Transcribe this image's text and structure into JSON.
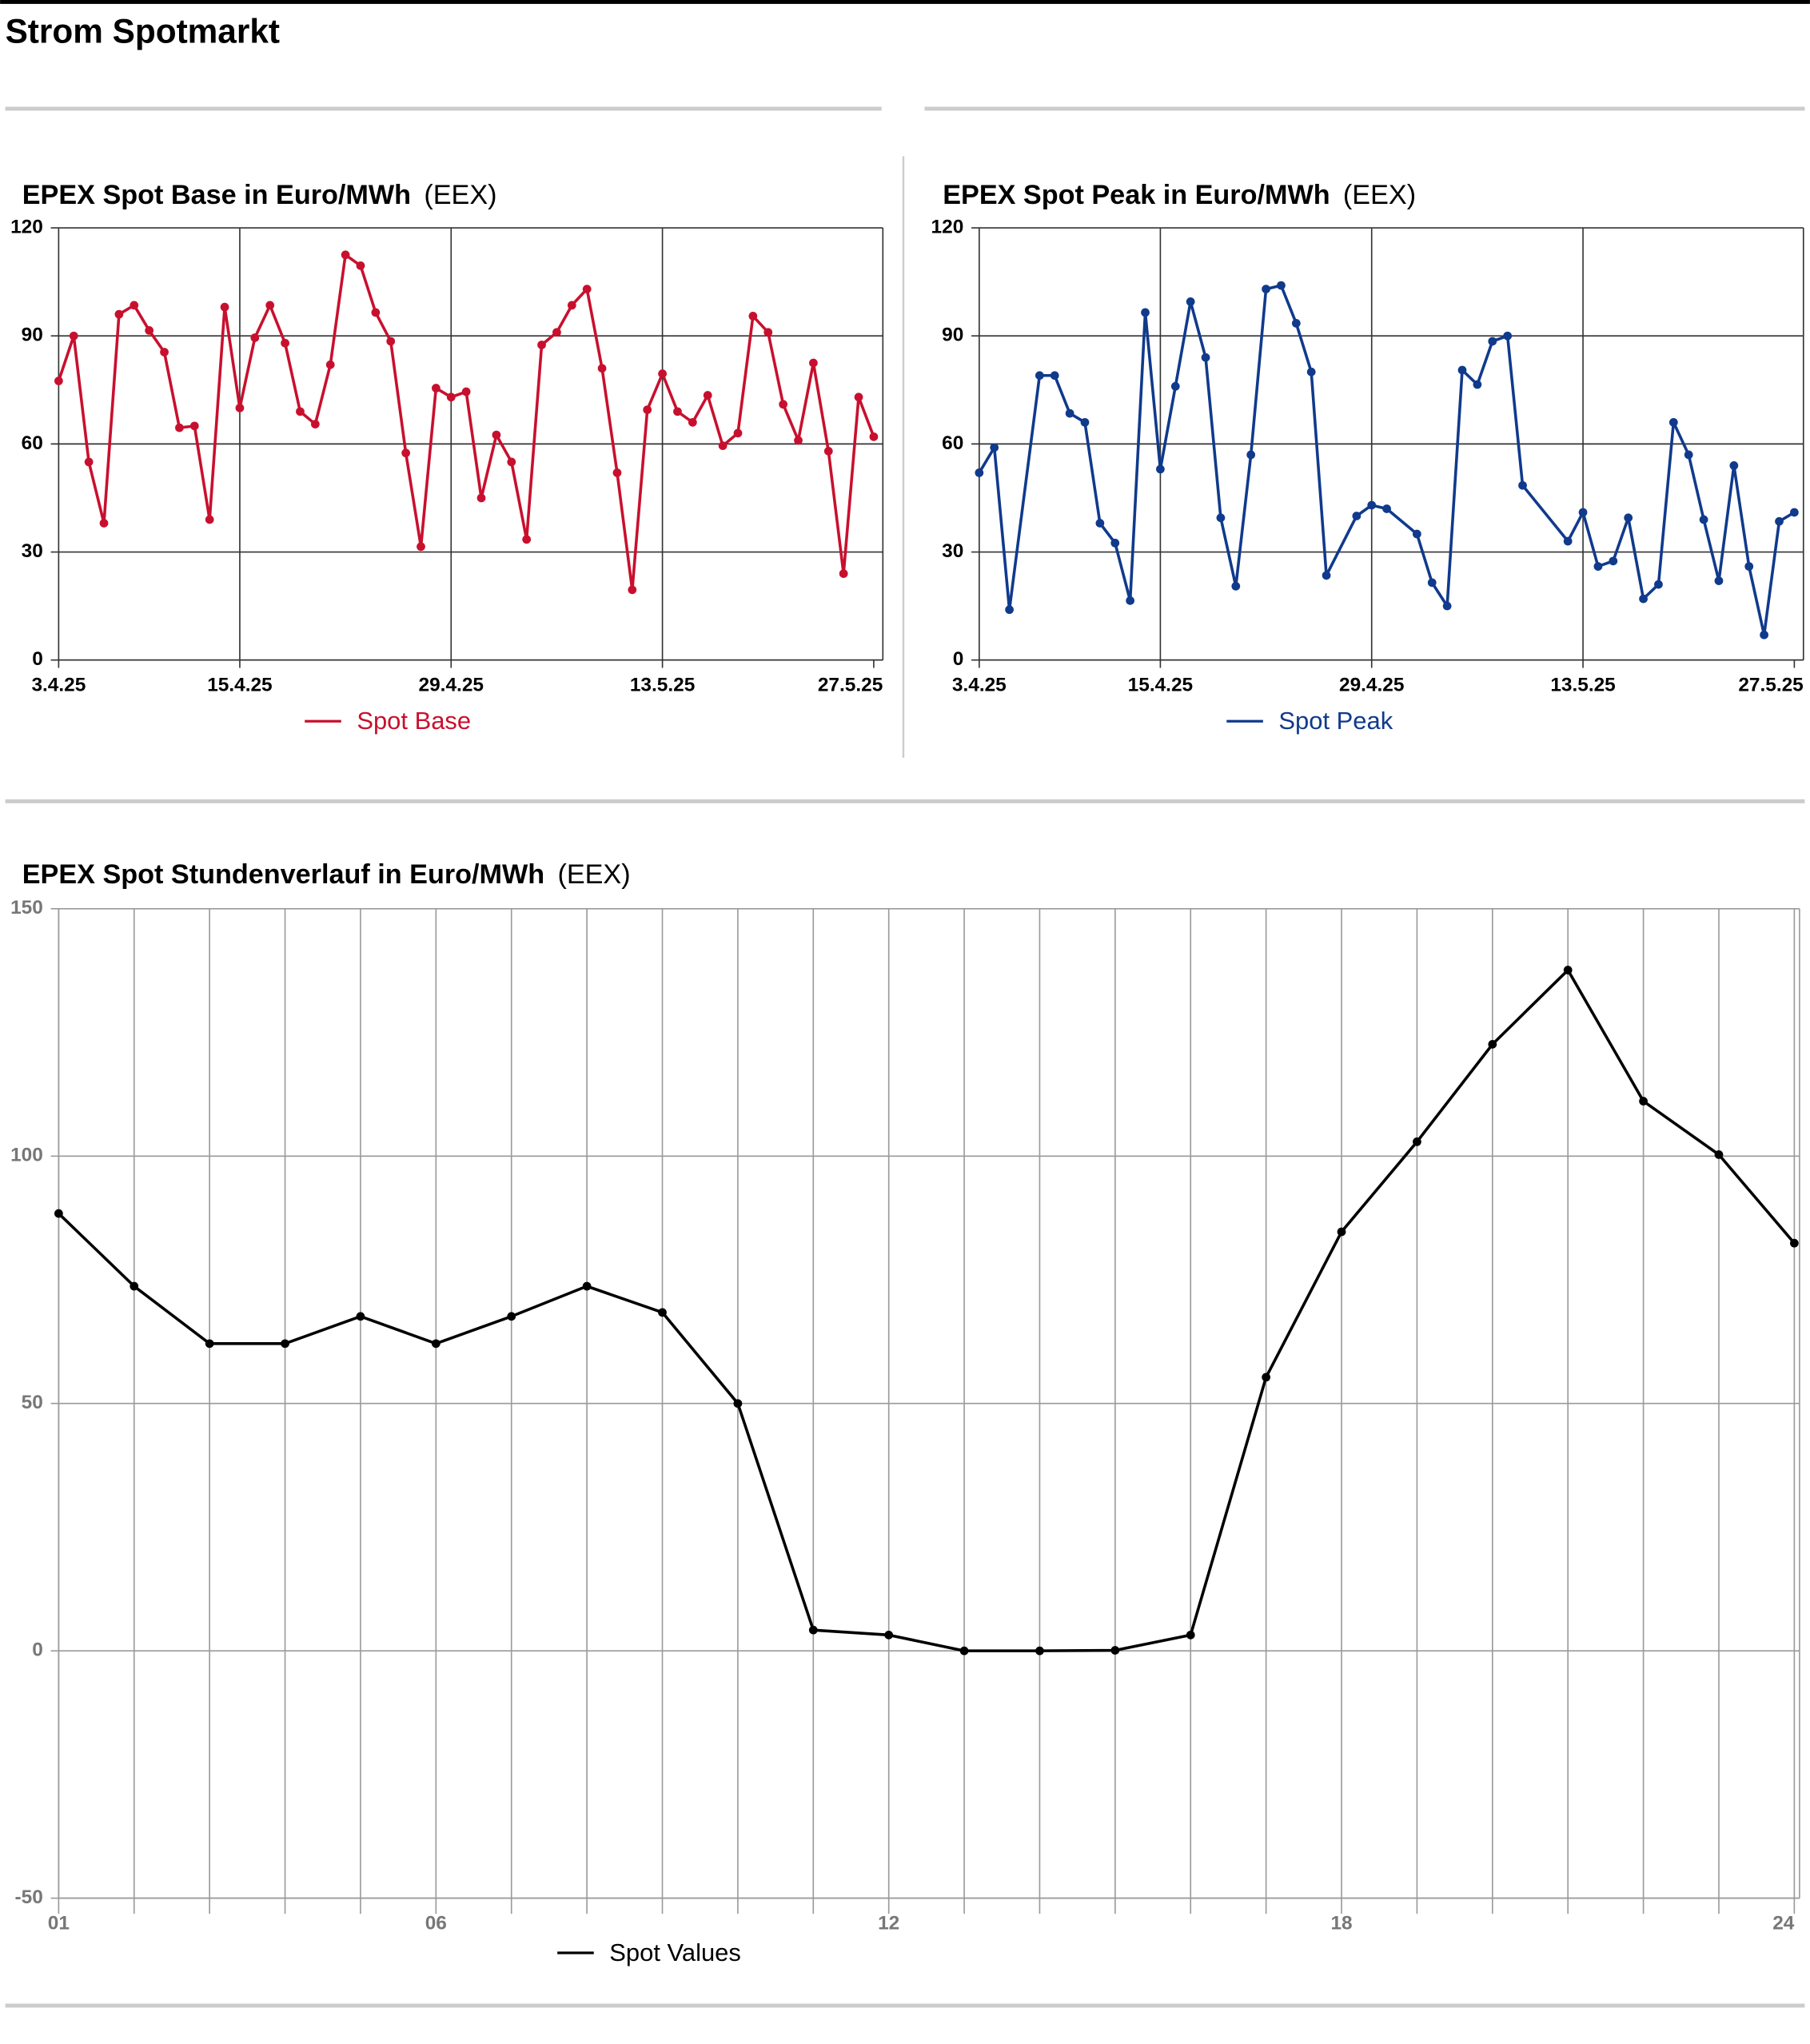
{
  "title": "Strom Spotmarkt",
  "chart_data": [
    {
      "type": "line",
      "title": "EPEX Spot Base in Euro/MWh",
      "source": "(EEX)",
      "x": [
        "3.4.25",
        "4.4.25",
        "5.4.25",
        "6.4.25",
        "7.4.25",
        "8.4.25",
        "9.4.25",
        "10.4.25",
        "11.4.25",
        "12.4.25",
        "13.4.25",
        "14.4.25",
        "15.4.25",
        "16.4.25",
        "17.4.25",
        "18.4.25",
        "19.4.25",
        "20.4.25",
        "21.4.25",
        "22.4.25",
        "23.4.25",
        "24.4.25",
        "25.4.25",
        "26.4.25",
        "27.4.25",
        "28.4.25",
        "29.4.25",
        "30.4.25",
        "1.5.25",
        "2.5.25",
        "3.5.25",
        "4.5.25",
        "5.5.25",
        "6.5.25",
        "7.5.25",
        "8.5.25",
        "9.5.25",
        "10.5.25",
        "11.5.25",
        "12.5.25",
        "13.5.25",
        "14.5.25",
        "15.5.25",
        "16.5.25",
        "17.5.25",
        "18.5.25",
        "19.5.25",
        "20.5.25",
        "21.5.25",
        "22.5.25",
        "23.5.25",
        "24.5.25",
        "25.5.25",
        "26.5.25",
        "27.5.25"
      ],
      "series": [
        {
          "name": "Spot Base",
          "color": "#c8102e",
          "values": [
            77.5,
            90,
            55,
            38,
            96,
            98.5,
            91.5,
            85.5,
            64.5,
            65,
            39,
            98,
            70,
            89.5,
            98.5,
            88,
            69,
            65.5,
            82,
            112.5,
            109.5,
            96.5,
            88.5,
            57.5,
            31.5,
            75.5,
            73,
            74.5,
            45,
            62.5,
            55,
            33.5,
            87.5,
            91,
            98.5,
            103,
            81,
            52,
            19.5,
            69.5,
            79.5,
            69,
            66,
            73.5,
            59.5,
            63,
            95.5,
            91,
            71,
            61,
            82.5,
            58,
            24,
            73,
            62
          ]
        }
      ],
      "xlim": [
        "3.4.25",
        "27.5.25"
      ],
      "xticks": [
        "3.4.25",
        "15.4.25",
        "29.4.25",
        "13.5.25",
        "27.5.25"
      ],
      "ylim": [
        0,
        120
      ],
      "yticks": [
        0,
        30,
        60,
        90,
        120
      ],
      "grid": true
    },
    {
      "type": "line",
      "title": "EPEX Spot Peak in Euro/MWh",
      "source": "(EEX)",
      "x": [
        "3.4.25",
        "4.4.25",
        "5.4.25",
        "7.4.25",
        "8.4.25",
        "9.4.25",
        "10.4.25",
        "11.4.25",
        "12.4.25",
        "13.4.25",
        "14.4.25",
        "15.4.25",
        "16.4.25",
        "17.4.25",
        "18.4.25",
        "19.4.25",
        "20.4.25",
        "21.4.25",
        "22.4.25",
        "23.4.25",
        "24.4.25",
        "25.4.25",
        "26.4.25",
        "28.4.25",
        "29.4.25",
        "30.4.25",
        "2.5.25",
        "3.5.25",
        "4.5.25",
        "5.5.25",
        "6.5.25",
        "7.5.25",
        "8.5.25",
        "9.5.25",
        "12.5.25",
        "13.5.25",
        "14.5.25",
        "15.5.25",
        "16.5.25",
        "17.5.25",
        "18.5.25",
        "19.5.25",
        "20.5.25",
        "21.5.25",
        "22.5.25",
        "23.5.25",
        "24.5.25",
        "25.5.25",
        "26.5.25",
        "27.5.25"
      ],
      "series": [
        {
          "name": "Spot Peak",
          "color": "#103a8c",
          "values": [
            52,
            59,
            14,
            79,
            79,
            68.5,
            66,
            38,
            32.5,
            16.5,
            96.5,
            53,
            76,
            99.5,
            84,
            39.5,
            20.5,
            57,
            103,
            104,
            93.5,
            80,
            23.5,
            40,
            43,
            42,
            35,
            21.5,
            15,
            80.5,
            76.5,
            88.5,
            90,
            48.5,
            33,
            41,
            26,
            27.5,
            39.5,
            17,
            21,
            66,
            57,
            39,
            22,
            54,
            26,
            7,
            38.5,
            41
          ]
        }
      ],
      "xlim": [
        "3.4.25",
        "27.5.25"
      ],
      "xticks": [
        "3.4.25",
        "15.4.25",
        "29.4.25",
        "13.5.25",
        "27.5.25"
      ],
      "ylim": [
        0,
        120
      ],
      "yticks": [
        0,
        30,
        60,
        90,
        120
      ],
      "grid": true
    },
    {
      "type": "line",
      "title": "EPEX Spot Stundenverlauf in Euro/MWh",
      "source": "(EEX)",
      "x": [
        1,
        2,
        3,
        4,
        5,
        6,
        7,
        8,
        9,
        10,
        11,
        12,
        13,
        14,
        15,
        16,
        17,
        18,
        19,
        20,
        21,
        22,
        23,
        24
      ],
      "series": [
        {
          "name": "Spot Values",
          "color": "#000000",
          "values": [
            88.4,
            73.7,
            62.1,
            62.1,
            67.6,
            62.1,
            67.6,
            73.7,
            68.4,
            50,
            4.2,
            3.2,
            0,
            0,
            0.1,
            3.2,
            55.3,
            84.7,
            102.9,
            122.6,
            137.6,
            111.1,
            100.3,
            82.4
          ]
        }
      ],
      "xlim": [
        1,
        24
      ],
      "xticks": [
        {
          "value": 1,
          "label": "01"
        },
        {
          "value": 6,
          "label": "06"
        },
        12,
        18,
        24
      ],
      "ylim": [
        -50,
        150
      ],
      "yticks": [
        -50,
        0,
        50,
        100,
        150
      ],
      "grid": true
    }
  ]
}
